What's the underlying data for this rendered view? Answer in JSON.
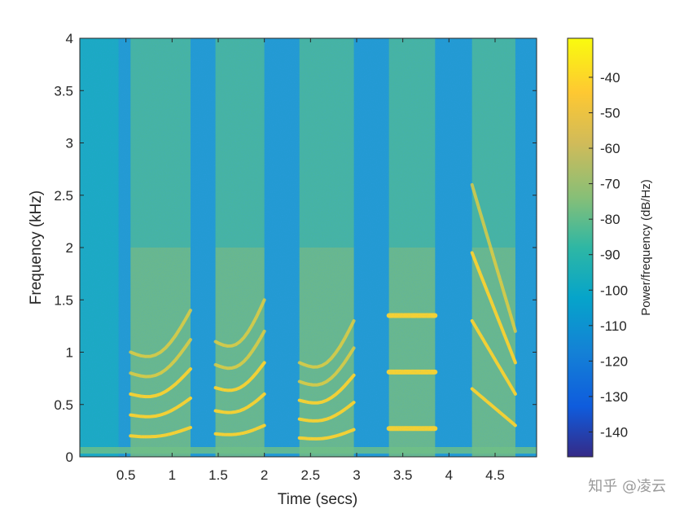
{
  "chart_data": {
    "type": "heatmap",
    "subtype": "spectrogram",
    "xlabel": "Time (secs)",
    "ylabel": "Frequency (kHz)",
    "colorbar_label": "Power/frequency (dB/Hz)",
    "colormap": "parula",
    "xlim": [
      0,
      4.95
    ],
    "ylim": [
      0,
      4
    ],
    "clim": [
      -147,
      -29
    ],
    "x_ticks": [
      0.5,
      1,
      1.5,
      2,
      2.5,
      3,
      3.5,
      4,
      4.5
    ],
    "x_tick_labels": [
      "0.5",
      "1",
      "1.5",
      "2",
      "2.5",
      "3",
      "3.5",
      "4",
      "4.5"
    ],
    "y_ticks": [
      0,
      0.5,
      1,
      1.5,
      2,
      2.5,
      3,
      3.5,
      4
    ],
    "y_tick_labels": [
      "0",
      "0.5",
      "1",
      "1.5",
      "2",
      "2.5",
      "3",
      "3.5",
      "4"
    ],
    "colorbar_ticks": [
      -40,
      -50,
      -60,
      -70,
      -80,
      -90,
      -100,
      -110,
      -120,
      -130,
      -140
    ],
    "colorbar_tick_labels": [
      "-40",
      "-50",
      "-60",
      "-70",
      "-80",
      "-90",
      "-100",
      "-110",
      "-120",
      "-130",
      "-140"
    ],
    "voiced_segments": [
      {
        "t_start": 0.55,
        "t_end": 1.2,
        "f0_kHz": 0.2
      },
      {
        "t_start": 1.47,
        "t_end": 2.0,
        "f0_kHz": 0.22
      },
      {
        "t_start": 2.38,
        "t_end": 2.97,
        "f0_kHz": 0.18
      },
      {
        "t_start": 3.35,
        "t_end": 3.85,
        "f0_kHz": 0.27
      },
      {
        "t_start": 4.25,
        "t_end": 4.72,
        "f0_kHz": 0.3
      }
    ]
  },
  "watermark": "知乎 @凌云",
  "colors": {
    "axes_text": "#262626",
    "background": "#ffffff"
  }
}
